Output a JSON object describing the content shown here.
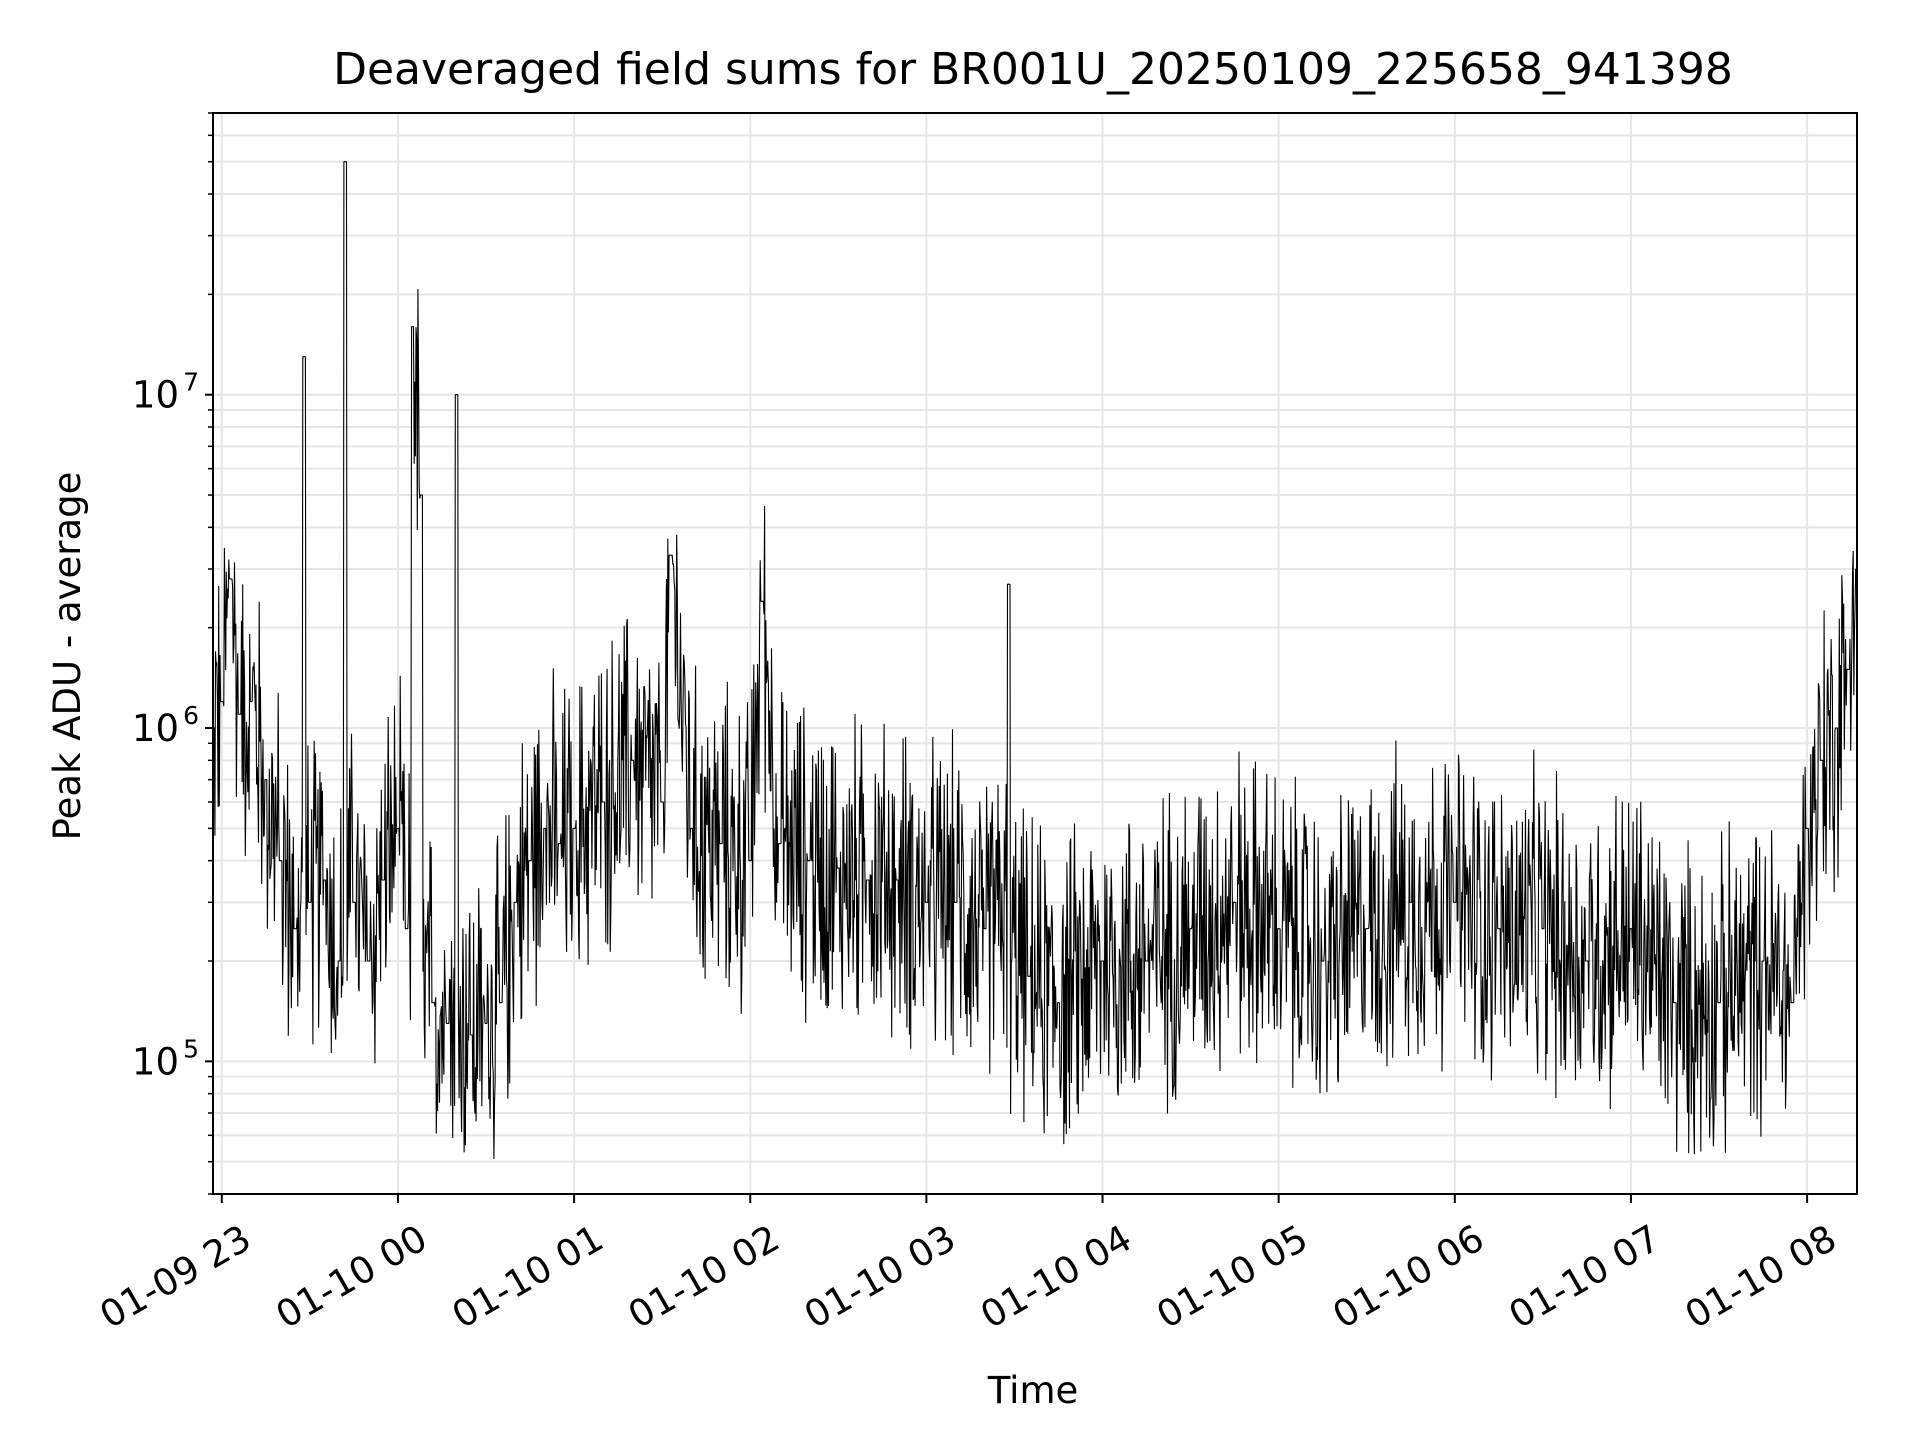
{
  "chart_data": {
    "type": "line",
    "title": "Deaveraged field sums for BR001U_20250109_225658_941398",
    "xlabel": "Time",
    "ylabel": "Peak ADU - average",
    "yscale": "log",
    "ylim": [
      40000,
      70000000
    ],
    "xlim": [
      "2025-01-09 22:57",
      "2025-01-10 08:17"
    ],
    "grid": true,
    "line_color": "#000000",
    "x_ticks": [
      {
        "label": "01-09 23",
        "value": "2025-01-09 23:00"
      },
      {
        "label": "01-10 00",
        "value": "2025-01-10 00:00"
      },
      {
        "label": "01-10 01",
        "value": "2025-01-10 01:00"
      },
      {
        "label": "01-10 02",
        "value": "2025-01-10 02:00"
      },
      {
        "label": "01-10 03",
        "value": "2025-01-10 03:00"
      },
      {
        "label": "01-10 04",
        "value": "2025-01-10 04:00"
      },
      {
        "label": "01-10 05",
        "value": "2025-01-10 05:00"
      },
      {
        "label": "01-10 06",
        "value": "2025-01-10 06:00"
      },
      {
        "label": "01-10 07",
        "value": "2025-01-10 07:00"
      },
      {
        "label": "01-10 08",
        "value": "2025-01-10 08:00"
      }
    ],
    "y_ticks": [
      {
        "base": "10",
        "exp": "5",
        "value": 100000
      },
      {
        "base": "10",
        "exp": "6",
        "value": 1000000
      },
      {
        "base": "10",
        "exp": "7",
        "value": 10000000
      }
    ],
    "series": [
      {
        "x": [
          "2025-01-09 22:57",
          "2025-01-09 23:00",
          "2025-01-09 23:03",
          "2025-01-09 23:06",
          "2025-01-09 23:10",
          "2025-01-09 23:15",
          "2025-01-09 23:20",
          "2025-01-09 23:25",
          "2025-01-09 23:28",
          "2025-01-09 23:30",
          "2025-01-09 23:35",
          "2025-01-09 23:40",
          "2025-01-09 23:42",
          "2025-01-09 23:45",
          "2025-01-09 23:50",
          "2025-01-09 23:55",
          "2025-01-10 00:00",
          "2025-01-10 00:03",
          "2025-01-10 00:05",
          "2025-01-10 00:08",
          "2025-01-10 00:12",
          "2025-01-10 00:17",
          "2025-01-10 00:20",
          "2025-01-10 00:25",
          "2025-01-10 00:30",
          "2025-01-10 00:35",
          "2025-01-10 00:40",
          "2025-01-10 00:45",
          "2025-01-10 00:50",
          "2025-01-10 00:55",
          "2025-01-10 01:00",
          "2025-01-10 01:10",
          "2025-01-10 01:20",
          "2025-01-10 01:30",
          "2025-01-10 01:33",
          "2025-01-10 01:40",
          "2025-01-10 01:50",
          "2025-01-10 02:00",
          "2025-01-10 02:04",
          "2025-01-10 02:10",
          "2025-01-10 02:20",
          "2025-01-10 02:30",
          "2025-01-10 02:40",
          "2025-01-10 02:50",
          "2025-01-10 03:00",
          "2025-01-10 03:10",
          "2025-01-10 03:20",
          "2025-01-10 03:28",
          "2025-01-10 03:35",
          "2025-01-10 03:45",
          "2025-01-10 04:00",
          "2025-01-10 04:15",
          "2025-01-10 04:30",
          "2025-01-10 04:45",
          "2025-01-10 05:00",
          "2025-01-10 05:15",
          "2025-01-10 05:30",
          "2025-01-10 05:45",
          "2025-01-10 06:00",
          "2025-01-10 06:15",
          "2025-01-10 06:30",
          "2025-01-10 06:45",
          "2025-01-10 07:00",
          "2025-01-10 07:15",
          "2025-01-10 07:30",
          "2025-01-10 07:45",
          "2025-01-10 07:55",
          "2025-01-10 08:00",
          "2025-01-10 08:05",
          "2025-01-10 08:10",
          "2025-01-10 08:14",
          "2025-01-10 08:17"
        ],
        "values": [
          1000000,
          1200000,
          2800000,
          1100000,
          1200000,
          700000,
          400000,
          250000,
          13000000,
          300000,
          350000,
          200000,
          50000000,
          300000,
          200000,
          350000,
          500000,
          250000,
          16000000,
          5000000,
          150000,
          130000,
          10000000,
          120000,
          130000,
          150000,
          300000,
          400000,
          500000,
          450000,
          500000,
          600000,
          800000,
          600000,
          3300000,
          500000,
          450000,
          400000,
          2400000,
          450000,
          400000,
          380000,
          350000,
          350000,
          300000,
          300000,
          250000,
          2700000,
          180000,
          150000,
          200000,
          200000,
          250000,
          300000,
          250000,
          200000,
          250000,
          300000,
          300000,
          250000,
          250000,
          200000,
          250000,
          150000,
          150000,
          200000,
          150000,
          500000,
          800000,
          1000000,
          1500000,
          3000000
        ],
        "noise_amplitude_decades": 0.35
      }
    ]
  }
}
